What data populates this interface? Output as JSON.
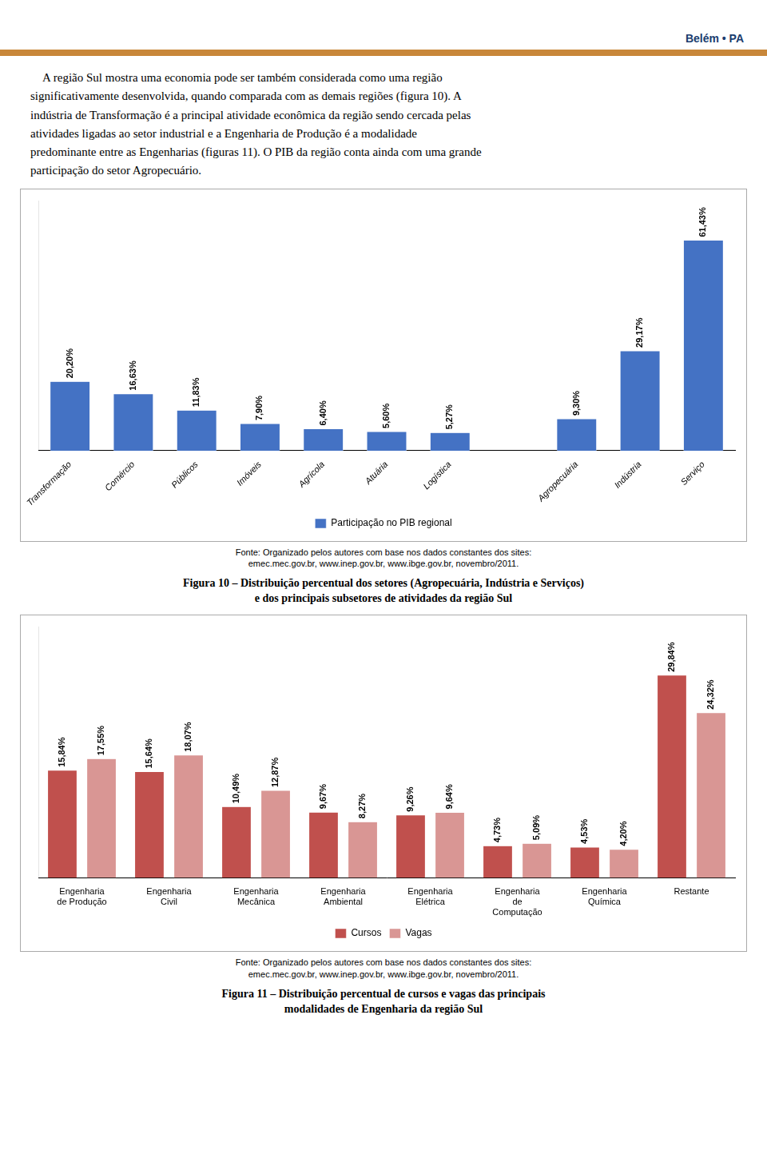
{
  "annotations": [
    "Belém • PA",
    "    A região Sul mostra uma economia pode ser também considerada como uma região\nsignificativamente desenvolvida, quando comparada com as demais regiões (figura 10). A\nindústria de Transformação é a principal atividade econômica da região sendo cercada pelas\natividades ligadas ao setor industrial e a Engenharia de Produção é a modalidade\npredominante entre as Engenharias (figuras 11). O PIB da região conta ainda com uma grande\nparticipação do setor Agropecuário."
  ],
  "chart_data": [
    {
      "type": "bar",
      "title": "Figura 10 – Distribuição percentual dos setores (Agropecuária, Indústria e Serviços)\ne dos principais subsetores de atividades da região Sul",
      "annotations": [
        "Fonte: Organizado pelos autores com base nos dados constantes dos sites:\nemec.mec.gov.br, www.inep.gov.br, www.ibge.gov.br, novembro/2011."
      ],
      "categories": [
        "Transformação",
        "Comércio",
        "Públicos",
        "Imóveis",
        "Agrícola",
        "Atuária",
        "Logística",
        null,
        "Agropecuária",
        "Indústria",
        "Serviço"
      ],
      "series": [
        {
          "name": "Participação no PIB regional",
          "color": "#4472c4",
          "values": [
            20.2,
            16.63,
            11.83,
            7.9,
            6.4,
            5.6,
            5.27,
            null,
            9.3,
            29.17,
            61.43
          ],
          "value_labels": [
            "20,20%",
            "16,63%",
            "11,83%",
            "7,90%",
            "6,40%",
            "5,60%",
            "5,27%",
            null,
            "9,30%",
            "29,17%",
            "61,43%"
          ]
        }
      ],
      "ylim": [
        0,
        73
      ],
      "grid": false,
      "legend": "bottom",
      "data_labels": true,
      "tick_labels": "x"
    },
    {
      "type": "bar",
      "title": "Figura 11 – Distribuição percentual de cursos e vagas das principais\nmodalidades de Engenharia da região Sul",
      "annotations": [
        "Fonte: Organizado pelos autores com base nos dados constantes dos sites:\nemec.mec.gov.br, www.inep.gov.br, www.ibge.gov.br, novembro/2011."
      ],
      "categories": [
        "Engenharia\nde Produção",
        "Engenharia\nCivil",
        "Engenharia\nMecânica",
        "Engenharia\nAmbiental",
        "Engenharia\nElétrica",
        "Engenharia\nde\nComputação",
        "Engenharia\nQuímica",
        "Restante"
      ],
      "series": [
        {
          "name": "Cursos",
          "color": "#c0504d",
          "values": [
            15.84,
            15.64,
            10.49,
            9.67,
            9.26,
            4.73,
            4.53,
            29.84
          ],
          "value_labels": [
            "15,84%",
            "15,64%",
            "10,49%",
            "9,67%",
            "9,26%",
            "4,73%",
            "4,53%",
            "29,84%"
          ]
        },
        {
          "name": "Vagas",
          "color": "#d99694",
          "values": [
            17.55,
            18.07,
            12.87,
            8.27,
            9.64,
            5.09,
            4.2,
            24.32
          ],
          "value_labels": [
            "17,55%",
            "18,07%",
            "12,87%",
            "8,27%",
            "9,64%",
            "5,09%",
            "4,20%",
            "24,32%"
          ]
        }
      ],
      "ylim": [
        0,
        37
      ],
      "grid": false,
      "legend": "bottom",
      "data_labels": true,
      "tick_labels": "x"
    }
  ]
}
